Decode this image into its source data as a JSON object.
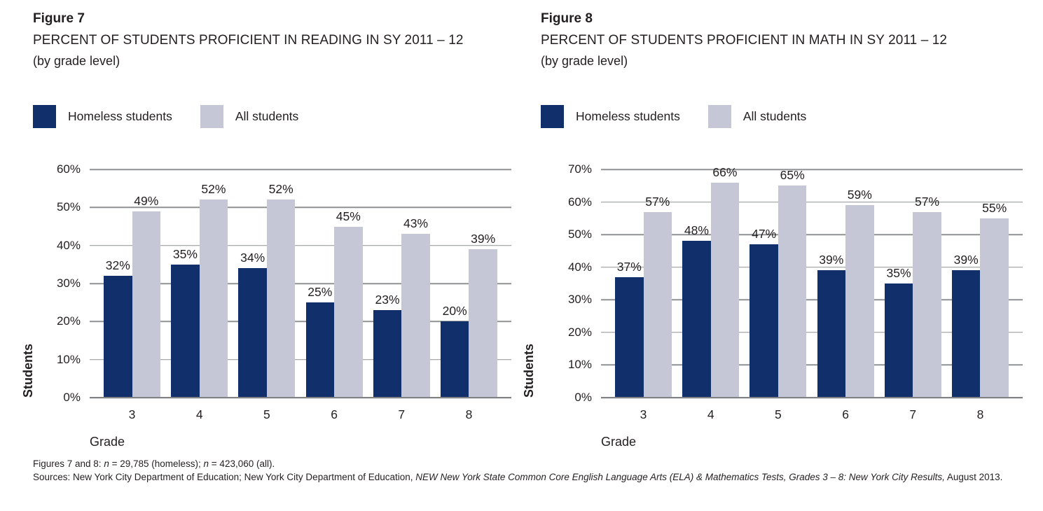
{
  "colors": {
    "homeless": "#112f6a",
    "all": "#c5c7d6",
    "gridline": "#8f9194",
    "axis_line": "#808285",
    "text": "#231f20"
  },
  "chart_data": [
    {
      "type": "bar",
      "figure_label": "Figure 7",
      "title": "PERCENT OF STUDENTS PROFICIENT IN READING IN SY 2011 – 12",
      "subtitle": "(by grade level)",
      "categories": [
        "3",
        "4",
        "5",
        "6",
        "7",
        "8"
      ],
      "series": [
        {
          "name": "Homeless students",
          "key": "homeless",
          "values": [
            32,
            35,
            34,
            25,
            23,
            20
          ]
        },
        {
          "name": "All students",
          "key": "all",
          "values": [
            49,
            52,
            52,
            45,
            43,
            39
          ]
        }
      ],
      "xlabel": "Grade",
      "ylabel": "Students",
      "ylim": [
        0,
        60
      ],
      "ytick_step": 10,
      "ytick_suffix": "%",
      "value_suffix": "%",
      "grid": true,
      "legend_position": "top-left"
    },
    {
      "type": "bar",
      "figure_label": "Figure 8",
      "title": "PERCENT OF STUDENTS PROFICIENT IN MATH IN SY 2011 – 12",
      "subtitle": "(by grade level)",
      "categories": [
        "3",
        "4",
        "5",
        "6",
        "7",
        "8"
      ],
      "series": [
        {
          "name": "Homeless students",
          "key": "homeless",
          "values": [
            37,
            48,
            47,
            39,
            35,
            39
          ]
        },
        {
          "name": "All students",
          "key": "all",
          "values": [
            57,
            66,
            65,
            59,
            57,
            55
          ]
        }
      ],
      "xlabel": "Grade",
      "ylabel": "Students",
      "ylim": [
        0,
        70
      ],
      "ytick_step": 10,
      "ytick_suffix": "%",
      "value_suffix": "%",
      "grid": true,
      "legend_position": "top-left"
    }
  ],
  "footnote": {
    "line1": {
      "prefix": "Figures 7 and 8: ",
      "n1": "n",
      "mid1": " = 29,785 (homeless); ",
      "n2": "n",
      "mid2": " = 423,060 (all)."
    },
    "line2": {
      "regular1": "Sources: New York City Department of Education; New York City Department of Education, ",
      "italic": "NEW New York State Common Core English Language Arts (ELA) & Mathematics Tests, Grades 3 – 8: New York City Results,",
      "regular2": " August 2013."
    }
  }
}
